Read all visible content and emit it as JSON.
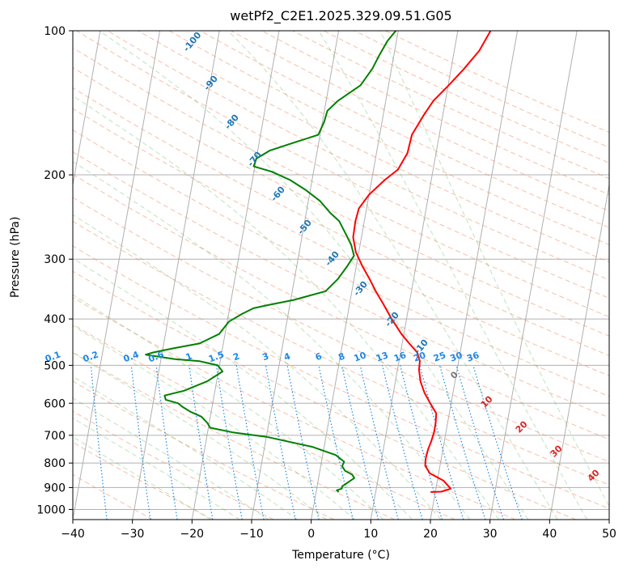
{
  "chart_data": {
    "type": "line",
    "title": "wetPf2_C2E1.2025.329.09.51.G05",
    "xlabel": "Temperature (°C)",
    "ylabel": "Pressure (hPa)",
    "xlim": [
      -40,
      50
    ],
    "ylim": [
      1050,
      100
    ],
    "y_scale": "log",
    "x_ticks": [
      "−40",
      "−30",
      "−20",
      "−10",
      "0",
      "10",
      "20",
      "30",
      "40",
      "50"
    ],
    "y_ticks": [
      "100",
      "200",
      "300",
      "400",
      "500",
      "600",
      "700",
      "800",
      "900",
      "1000"
    ],
    "grid": true,
    "series": [
      {
        "color": "#ff0000",
        "points": [
          [
            19.2,
            920
          ],
          [
            21,
            918
          ],
          [
            22.5,
            905
          ],
          [
            21,
            870
          ],
          [
            18.5,
            840
          ],
          [
            17.5,
            810
          ],
          [
            17.4,
            780
          ],
          [
            17.5,
            750
          ],
          [
            17.8,
            720
          ],
          [
            18,
            690
          ],
          [
            18,
            660
          ],
          [
            17.8,
            630
          ],
          [
            16.5,
            600
          ],
          [
            15.2,
            570
          ],
          [
            14.2,
            540
          ],
          [
            13.6,
            510
          ],
          [
            13.5,
            490
          ],
          [
            12.8,
            470
          ],
          [
            11.2,
            450
          ],
          [
            9.6,
            430
          ],
          [
            7.5,
            400
          ],
          [
            5.5,
            370
          ],
          [
            4,
            350
          ],
          [
            2.6,
            330
          ],
          [
            1,
            310
          ],
          [
            -0.5,
            290
          ],
          [
            -1.4,
            270
          ],
          [
            -1.5,
            250
          ],
          [
            -1.3,
            235
          ],
          [
            0,
            220
          ],
          [
            2.2,
            205
          ],
          [
            4.1,
            195
          ],
          [
            5.2,
            180
          ],
          [
            5.4,
            165
          ],
          [
            6.8,
            150
          ],
          [
            8,
            140
          ],
          [
            10.1,
            130
          ],
          [
            12.2,
            120
          ],
          [
            14.2,
            110
          ],
          [
            15.5,
            100
          ]
        ]
      },
      {
        "color": "#008000",
        "points": [
          [
            3.8,
            920
          ],
          [
            3.4,
            912
          ],
          [
            4.2,
            905
          ],
          [
            4.2,
            895
          ],
          [
            5.2,
            875
          ],
          [
            6,
            860
          ],
          [
            5.5,
            845
          ],
          [
            4.2,
            830
          ],
          [
            3.6,
            812
          ],
          [
            3.8,
            795
          ],
          [
            2.2,
            770
          ],
          [
            -2,
            740
          ],
          [
            -10,
            705
          ],
          [
            -15.8,
            690
          ],
          [
            -19.7,
            675
          ],
          [
            -20.3,
            660
          ],
          [
            -21.5,
            640
          ],
          [
            -23.5,
            625
          ],
          [
            -25,
            610
          ],
          [
            -25.8,
            600
          ],
          [
            -28,
            590
          ],
          [
            -28.3,
            578
          ],
          [
            -25.2,
            565
          ],
          [
            -21.6,
            540
          ],
          [
            -19.3,
            515
          ],
          [
            -20.3,
            500
          ],
          [
            -23.5,
            490
          ],
          [
            -27.8,
            485
          ],
          [
            -32.7,
            475
          ],
          [
            -31.5,
            470
          ],
          [
            -28,
            460
          ],
          [
            -24,
            450
          ],
          [
            -21,
            430
          ],
          [
            -19.7,
            405
          ],
          [
            -17.7,
            390
          ],
          [
            -16,
            380
          ],
          [
            -14,
            375
          ],
          [
            -9.5,
            365
          ],
          [
            -4.4,
            350
          ],
          [
            -2.7,
            330
          ],
          [
            -1.5,
            310
          ],
          [
            -0.7,
            295
          ],
          [
            -1.5,
            280
          ],
          [
            -2.8,
            265
          ],
          [
            -4.2,
            250
          ],
          [
            -6,
            240
          ],
          [
            -8,
            227
          ],
          [
            -10.8,
            215
          ],
          [
            -13.7,
            205
          ],
          [
            -17,
            197
          ],
          [
            -20.2,
            192
          ],
          [
            -20,
            185
          ],
          [
            -18,
            178
          ],
          [
            -14,
            171
          ],
          [
            -10.3,
            165
          ],
          [
            -9.7,
            155
          ],
          [
            -9.5,
            147
          ],
          [
            -8,
            140
          ],
          [
            -4.7,
            130
          ],
          [
            -3.2,
            120
          ],
          [
            -2.5,
            113
          ],
          [
            -1.5,
            105
          ],
          [
            -0.4,
            100
          ]
        ]
      }
    ],
    "dry_adiabat_labels": [
      "-100",
      "-90",
      "-80",
      "-70",
      "-60",
      "-50",
      "-40",
      "-30",
      "-20",
      "-10"
    ],
    "moist_adiabat_labels": [
      "0",
      "10",
      "20",
      "30",
      "40"
    ],
    "mixing_ratio_labels": [
      "0.1",
      "0.2",
      "0.4",
      "0.6",
      "1",
      "1.5",
      "2",
      "3",
      "4",
      "6",
      "8",
      "10",
      "13",
      "16",
      "20",
      "25",
      "30",
      "36"
    ]
  }
}
